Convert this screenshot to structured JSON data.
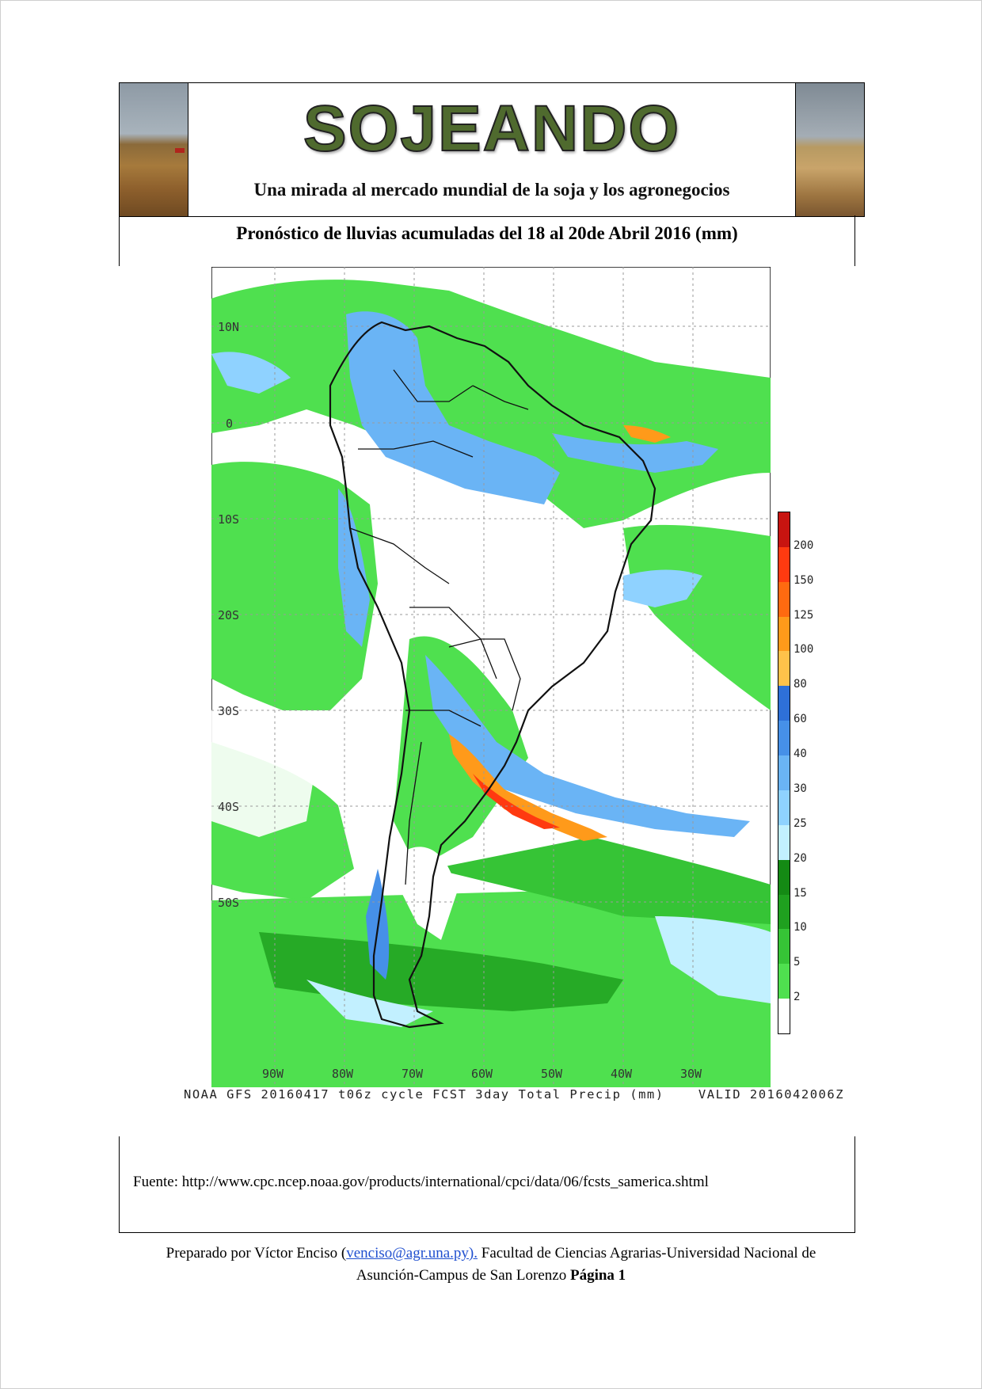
{
  "header": {
    "brand_title": "SOJEANDO",
    "brand_subtitle": "Una mirada al mercado mundial de la soja y los agronegocios"
  },
  "map": {
    "title": "Pronóstico de lluvias acumuladas del 18 al  20de Abril 2016 (mm)",
    "lat_labels": [
      "10N",
      "0",
      "10S",
      "20S",
      "30S",
      "40S",
      "50S"
    ],
    "lon_labels": [
      "90W",
      "80W",
      "70W",
      "60W",
      "50W",
      "40W",
      "30W"
    ],
    "caption": "NOAA GFS 20160417 t06z cycle FCST 3day Total Precip (mm)    VALID 2016042006Z",
    "legend": {
      "labels": [
        "200",
        "150",
        "125",
        "100",
        "80",
        "60",
        "40",
        "30",
        "25",
        "20",
        "15",
        "10",
        "5",
        "2"
      ],
      "colors": [
        "#ffffff",
        "#4fe04f",
        "#36c436",
        "#1fa01f",
        "#148a14",
        "#c2f0ff",
        "#8fd2ff",
        "#6ab4f5",
        "#4690e8",
        "#2e70d8",
        "#ffc24a",
        "#ff9a1a",
        "#ff6a10",
        "#ff3a10",
        "#c81410"
      ]
    }
  },
  "source": {
    "text": "Fuente: http://www.cpc.ncep.noaa.gov/products/international/cpci/data/06/fcsts_samerica.shtml"
  },
  "footer": {
    "prepared_prefix": "Preparado por Víctor Enciso (",
    "email": "venciso@agr.una.py).",
    "prepared_suffix": " Facultad de Ciencias Agrarias-Universidad Nacional de",
    "line2_text": "Asunción-Campus de San Lorenzo ",
    "page_label": "Página 1"
  }
}
